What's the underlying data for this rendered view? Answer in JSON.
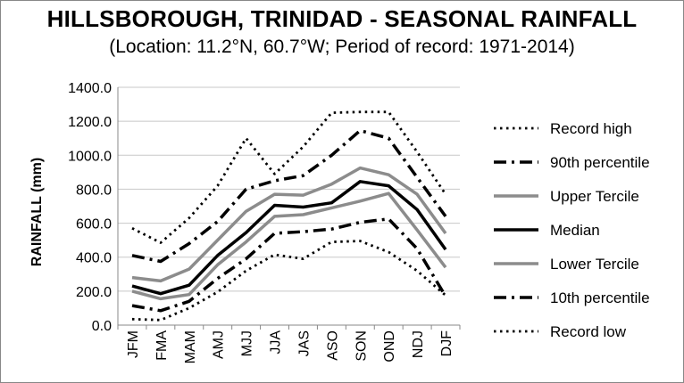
{
  "chart_data": {
    "type": "line",
    "title": "HILLSBOROUGH, TRINIDAD - SEASONAL RAINFALL",
    "subtitle": "(Location: 11.2°N, 60.7°W; Period of record: 1971-2014)",
    "xlabel": "",
    "ylabel": "RAINFALL (mm)",
    "ylim": [
      0,
      1400
    ],
    "yticks": [
      "0.0",
      "200.0",
      "400.0",
      "600.0",
      "800.0",
      "1000.0",
      "1200.0",
      "1400.0"
    ],
    "grid": true,
    "legend_position": "right",
    "categories": [
      "JFM",
      "FMA",
      "MAM",
      "AMJ",
      "MJJ",
      "JJA",
      "JAS",
      "ASO",
      "SON",
      "OND",
      "NDJ",
      "DJF"
    ],
    "series": [
      {
        "name": "Record high",
        "style": "dotted",
        "color": "#000000",
        "values": [
          570,
          485,
          630,
          820,
          1100,
          890,
          1050,
          1250,
          1255,
          1255,
          1020,
          770
        ]
      },
      {
        "name": "90th percentile",
        "style": "dashdot",
        "color": "#000000",
        "values": [
          410,
          375,
          480,
          610,
          800,
          850,
          880,
          1000,
          1145,
          1100,
          870,
          640
        ]
      },
      {
        "name": "Upper Tercile",
        "style": "solid",
        "color": "#8c8c8c",
        "values": [
          280,
          260,
          330,
          500,
          670,
          770,
          765,
          830,
          925,
          885,
          770,
          540
        ]
      },
      {
        "name": "Median",
        "style": "solid",
        "color": "#000000",
        "values": [
          230,
          185,
          235,
          410,
          545,
          705,
          695,
          720,
          845,
          820,
          680,
          445
        ]
      },
      {
        "name": "Lower Tercile",
        "style": "solid",
        "color": "#8c8c8c",
        "values": [
          200,
          155,
          180,
          355,
          490,
          640,
          650,
          690,
          730,
          775,
          560,
          340
        ]
      },
      {
        "name": "10th percentile",
        "style": "dashdot",
        "color": "#000000",
        "values": [
          115,
          85,
          140,
          275,
          390,
          540,
          550,
          565,
          605,
          625,
          450,
          170
        ]
      },
      {
        "name": "Record low",
        "style": "dotted",
        "color": "#000000",
        "values": [
          35,
          30,
          100,
          195,
          320,
          415,
          390,
          490,
          495,
          430,
          320,
          175
        ]
      }
    ]
  }
}
